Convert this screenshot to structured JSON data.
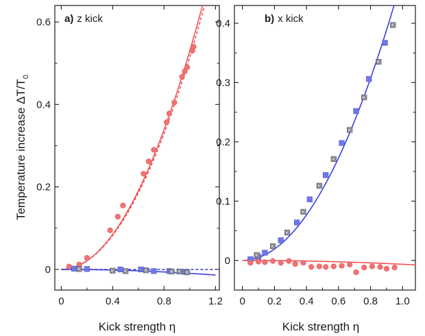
{
  "chart_data": [
    {
      "type": "scatter",
      "panel_label": "a)",
      "panel_title": "z kick",
      "xlabel": "Kick strength η",
      "ylabel": "Temperature increase ΔT/T",
      "ylabel_subscript": "0",
      "xlim": [
        -0.05,
        1.23
      ],
      "ylim": [
        -0.05,
        0.64
      ],
      "xticks": [
        0,
        0.4,
        0.8,
        1.2
      ],
      "xtick_labels": [
        "0",
        "0.4",
        "0.8",
        "1.2"
      ],
      "yticks": [
        0,
        0.2,
        0.4,
        0.6
      ],
      "ytick_labels": [
        "0",
        "0.2",
        "0.4",
        "0.6"
      ],
      "series": [
        {
          "marker": "circle",
          "color": "#f07373",
          "x": [
            0.06,
            0.14,
            0.2,
            0.38,
            0.44,
            0.48,
            0.64,
            0.68,
            0.72,
            0.82,
            0.84,
            0.88,
            0.94,
            0.96,
            0.98,
            1.02,
            1.03
          ],
          "y": [
            0.007,
            0.012,
            0.028,
            0.095,
            0.128,
            0.155,
            0.232,
            0.262,
            0.29,
            0.357,
            0.378,
            0.405,
            0.467,
            0.48,
            0.49,
            0.53,
            0.54
          ]
        },
        {
          "marker": "square",
          "color": "#6f78e8",
          "x": [
            0.1,
            0.2,
            0.46,
            0.62,
            0.72,
            0.84,
            0.96
          ],
          "y": [
            0.002,
            0.001,
            0.0,
            0.0,
            -0.004,
            -0.004,
            -0.006
          ]
        },
        {
          "marker": "triangle-right",
          "color": "#9a9aa6",
          "x": [
            0.14,
            0.4,
            0.5,
            0.66,
            0.86,
            0.92,
            0.98
          ],
          "y": [
            0.001,
            -0.003,
            -0.004,
            -0.002,
            -0.005,
            -0.005,
            -0.007
          ]
        }
      ],
      "curves": [
        {
          "color": "#f05050",
          "style": "solid",
          "x": [
            0,
            1.2
          ],
          "func": "quad",
          "a": 0.53
        },
        {
          "color": "#f05050",
          "style": "dashed",
          "x": [
            0,
            1.2
          ],
          "func": "quad",
          "a": 0.515
        },
        {
          "color": "#3a3ee0",
          "style": "solid",
          "x": [
            0,
            1.2
          ],
          "func": "quad",
          "a": -0.0095
        },
        {
          "color": "#3a3ee0",
          "style": "dashed",
          "x": [
            0,
            1.2
          ],
          "func": "quad",
          "a": 0.0
        }
      ]
    },
    {
      "type": "scatter",
      "panel_label": "b)",
      "panel_title": "x kick",
      "xlabel": "Kick strength η",
      "xlim": [
        -0.05,
        1.08
      ],
      "ylim": [
        -0.05,
        0.43
      ],
      "xticks": [
        0,
        0.2,
        0.4,
        0.6,
        0.8,
        1.0
      ],
      "xtick_labels": [
        "0",
        "0.2",
        "0.4",
        "0.6",
        "0.8",
        "1.0"
      ],
      "yticks": [
        0,
        0.1,
        0.2,
        0.3,
        0.4
      ],
      "ytick_labels": [
        "0",
        "0.1",
        "0.2",
        "0.3",
        "0.4"
      ],
      "series": [
        {
          "marker": "square",
          "color": "#6f78e8",
          "x": [
            0.05,
            0.1,
            0.14,
            0.24,
            0.34,
            0.42,
            0.52,
            0.62,
            0.71,
            0.79,
            0.89
          ],
          "y": [
            0.002,
            0.006,
            0.013,
            0.034,
            0.064,
            0.103,
            0.144,
            0.198,
            0.252,
            0.306,
            0.367
          ]
        },
        {
          "marker": "triangle-right",
          "color": "#9a9aa6",
          "x": [
            0.09,
            0.19,
            0.28,
            0.38,
            0.48,
            0.57,
            0.67,
            0.76,
            0.85,
            0.94
          ],
          "y": [
            0.009,
            0.024,
            0.047,
            0.082,
            0.126,
            0.171,
            0.22,
            0.275,
            0.335,
            0.397
          ]
        },
        {
          "marker": "circle",
          "color": "#f07373",
          "x": [
            0.05,
            0.1,
            0.14,
            0.19,
            0.24,
            0.29,
            0.33,
            0.38,
            0.43,
            0.48,
            0.52,
            0.57,
            0.62,
            0.67,
            0.71,
            0.76,
            0.81,
            0.86,
            0.9,
            0.95
          ],
          "y": [
            -0.004,
            -0.002,
            -0.003,
            -0.001,
            -0.004,
            -0.001,
            -0.006,
            -0.004,
            -0.011,
            -0.01,
            -0.011,
            -0.01,
            -0.009,
            -0.007,
            -0.02,
            -0.012,
            -0.01,
            -0.011,
            -0.014,
            -0.012
          ]
        }
      ],
      "curves": [
        {
          "color": "#3a3ee0",
          "style": "solid",
          "x": [
            0,
            1.08
          ],
          "func": "quad",
          "a": 0.48
        },
        {
          "color": "#f05050",
          "style": "solid",
          "x": [
            0,
            1.08
          ],
          "func": "quad",
          "a": -0.0065
        }
      ]
    }
  ]
}
